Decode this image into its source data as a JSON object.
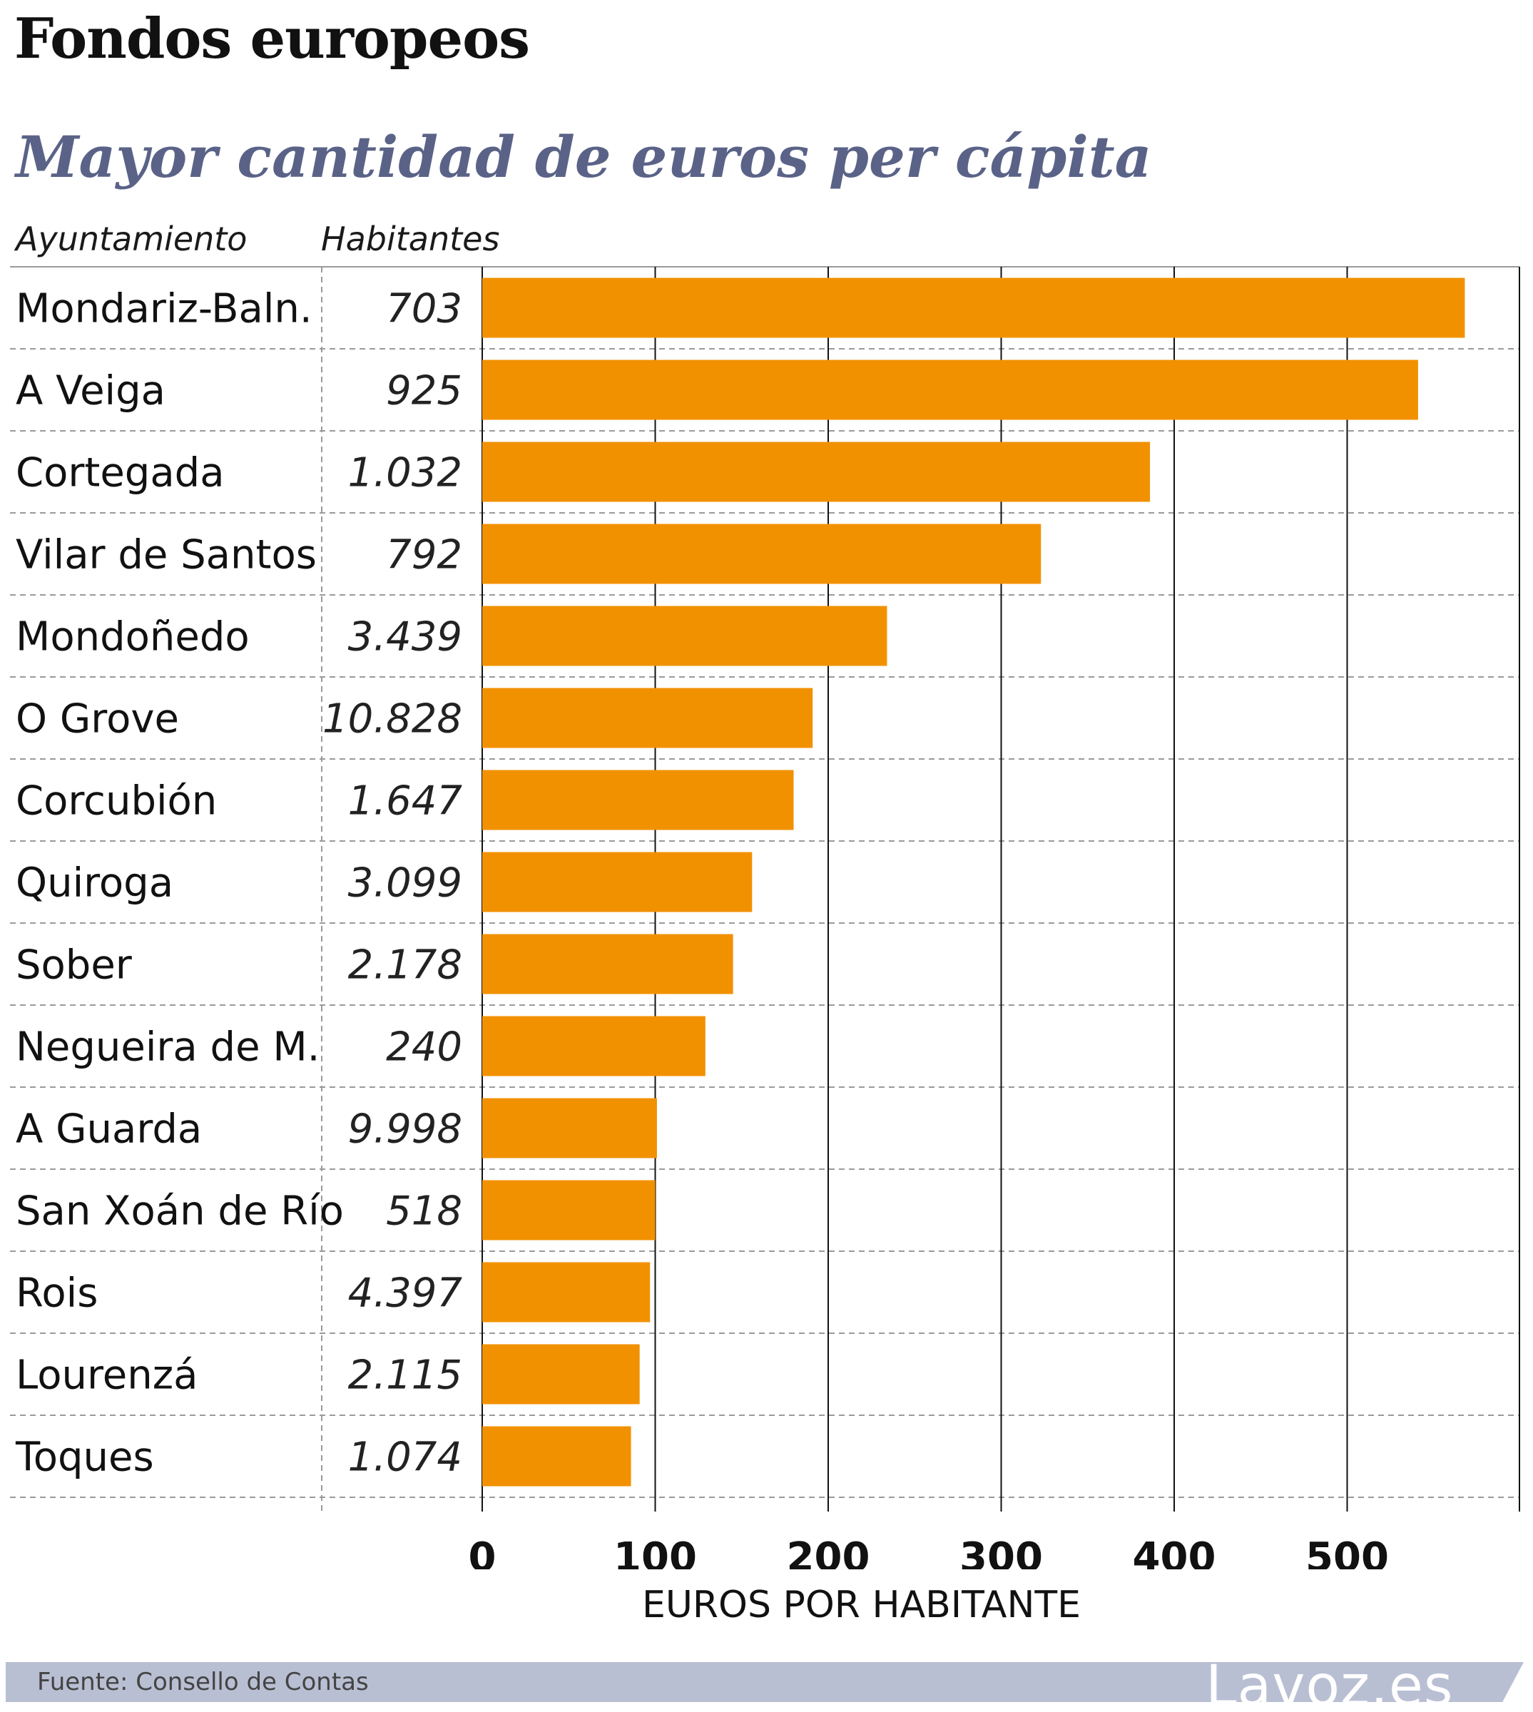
{
  "title": "Fondos europeos",
  "subtitle": "Mayor cantidad de euros per cápita",
  "column_headers": {
    "municipality": "Ayuntamiento",
    "population": "Habitantes"
  },
  "source": "Fuente: Consello de Contas",
  "logo_text": "Lavoz.es",
  "colors": {
    "bar": "#f29100",
    "subtitle": "#5a6387",
    "footer_band": "#b9bfd3"
  },
  "chart_data": {
    "type": "bar",
    "orientation": "horizontal",
    "xlabel": "EUROS POR HABITANTE",
    "xlim": [
      0,
      600
    ],
    "xticks": [
      0,
      100,
      200,
      300,
      400,
      500
    ],
    "grid": true,
    "categories": [
      "Mondariz-Baln.",
      "A Veiga",
      "Cortegada",
      "Vilar de Santos",
      "Mondoñedo",
      "O Grove",
      "Corcubión",
      "Quiroga",
      "Sober",
      "Negueira de M.",
      "A Guarda",
      "San Xoán de Río",
      "Rois",
      "Lourenzá",
      "Toques"
    ],
    "population": [
      "703",
      "925",
      "1.032",
      "792",
      "3.439",
      "10.828",
      "1.647",
      "3.099",
      "2.178",
      "240",
      "9.998",
      "518",
      "4.397",
      "2.115",
      "1.074"
    ],
    "values": [
      568,
      541,
      386,
      323,
      234,
      191,
      180,
      156,
      145,
      129,
      101,
      100,
      97,
      91,
      86
    ]
  }
}
